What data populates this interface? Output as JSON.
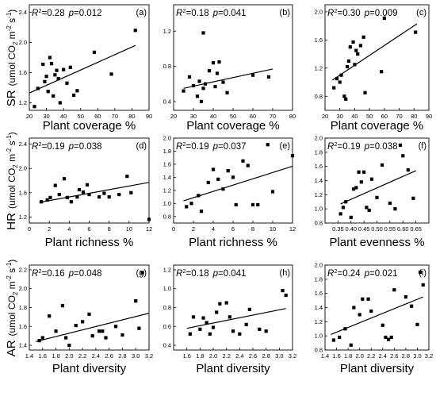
{
  "figure": {
    "row_labels": [
      {
        "resp": "SR",
        "unit": "(umol CO",
        "sub": "2",
        "unit2": " m",
        "sup1": "-2",
        "unit3": " s",
        "sup2": "-1",
        "close": ")"
      },
      {
        "resp": "HR",
        "unit": "(umol CO",
        "sub": "2",
        "unit2": " m",
        "sup1": "-2",
        "unit3": " s",
        "sup2": "-1",
        "close": ")"
      },
      {
        "resp": "AR",
        "unit": "(umol CO",
        "sub": "2",
        "unit2": " m",
        "sup1": "-2",
        "unit3": " s",
        "sup2": "-1",
        "close": ")"
      }
    ]
  },
  "chart_data": [
    {
      "id": "a",
      "type": "scatter",
      "panel_label": "(a)",
      "r2": "0.28",
      "p": "0.012",
      "xlabel": "Plant coverage %",
      "xlim": [
        20,
        90
      ],
      "ylim": [
        1.1,
        2.5
      ],
      "xticks": [
        20,
        30,
        40,
        50,
        60,
        70,
        80,
        90
      ],
      "yticks": [
        1.2,
        1.6,
        2.0,
        2.4
      ],
      "decimals": 1,
      "fit": [
        [
          20,
          1.33
        ],
        [
          82,
          1.96
        ]
      ],
      "points": [
        [
          23,
          1.15
        ],
        [
          25,
          1.39
        ],
        [
          28,
          1.71
        ],
        [
          29,
          1.48
        ],
        [
          30,
          1.55
        ],
        [
          31,
          1.35
        ],
        [
          32,
          1.8
        ],
        [
          33,
          1.72
        ],
        [
          34,
          1.29
        ],
        [
          35,
          1.57
        ],
        [
          36,
          1.63
        ],
        [
          37,
          1.52
        ],
        [
          38,
          1.2
        ],
        [
          40,
          1.64
        ],
        [
          42,
          1.46
        ],
        [
          44,
          1.67
        ],
        [
          46,
          1.3
        ],
        [
          48,
          1.36
        ],
        [
          58,
          1.87
        ],
        [
          68,
          1.58
        ],
        [
          82,
          2.16
        ]
      ]
    },
    {
      "id": "b",
      "type": "scatter",
      "panel_label": "(b)",
      "r2": "0.18",
      "p": "0.041",
      "xlabel": "Plant coverage %",
      "xlim": [
        20,
        80
      ],
      "ylim": [
        0.3,
        1.5
      ],
      "xticks": [
        20,
        30,
        40,
        50,
        60,
        70,
        80
      ],
      "yticks": [
        0.4,
        0.8,
        1.2
      ],
      "decimals": 1,
      "fit": [
        [
          25,
          0.55
        ],
        [
          70,
          0.77
        ]
      ],
      "points": [
        [
          25,
          0.52
        ],
        [
          28,
          0.68
        ],
        [
          30,
          0.58
        ],
        [
          32,
          0.46
        ],
        [
          33,
          0.63
        ],
        [
          34,
          0.4
        ],
        [
          35,
          0.55
        ],
        [
          36,
          0.6
        ],
        [
          38,
          0.75
        ],
        [
          40,
          0.84
        ],
        [
          41,
          0.57
        ],
        [
          42,
          0.72
        ],
        [
          43,
          0.85
        ],
        [
          45,
          0.62
        ],
        [
          47,
          0.5
        ],
        [
          60,
          0.7
        ],
        [
          68,
          0.68
        ],
        [
          35,
          1.18
        ]
      ]
    },
    {
      "id": "c",
      "type": "scatter",
      "panel_label": "(c)",
      "r2": "0.30",
      "p": "0.009",
      "xlabel": "Plant coverage %",
      "xlim": [
        20,
        90
      ],
      "ylim": [
        0.6,
        2.1
      ],
      "xticks": [
        20,
        30,
        40,
        50,
        60,
        70,
        80,
        90
      ],
      "yticks": [
        0.8,
        1.2,
        1.6,
        2.0
      ],
      "decimals": 1,
      "fit": [
        [
          25,
          1.03
        ],
        [
          82,
          1.83
        ]
      ],
      "points": [
        [
          26,
          0.92
        ],
        [
          28,
          1.05
        ],
        [
          30,
          1.0
        ],
        [
          31,
          1.1
        ],
        [
          33,
          0.8
        ],
        [
          34,
          0.76
        ],
        [
          35,
          1.22
        ],
        [
          36,
          1.3
        ],
        [
          37,
          1.5
        ],
        [
          39,
          1.57
        ],
        [
          40,
          1.25
        ],
        [
          41,
          1.45
        ],
        [
          42,
          1.4
        ],
        [
          44,
          1.52
        ],
        [
          46,
          1.64
        ],
        [
          47,
          0.85
        ],
        [
          58,
          1.15
        ],
        [
          60,
          1.91
        ],
        [
          81,
          1.71
        ]
      ]
    },
    {
      "id": "d",
      "type": "scatter",
      "panel_label": "(d)",
      "r2": "0.19",
      "p": "0.038",
      "xlabel": "Plant richness %",
      "xlim": [
        0,
        12
      ],
      "ylim": [
        1.1,
        2.5
      ],
      "xticks": [
        0,
        2,
        4,
        6,
        8,
        10,
        12
      ],
      "yticks": [
        1.2,
        1.6,
        2.0,
        2.4
      ],
      "decimals": 1,
      "fit": [
        [
          1,
          1.44
        ],
        [
          12,
          1.77
        ]
      ],
      "points": [
        [
          1.2,
          1.45
        ],
        [
          1.8,
          1.48
        ],
        [
          2.1,
          1.52
        ],
        [
          2.6,
          1.72
        ],
        [
          3.0,
          1.57
        ],
        [
          3.5,
          1.83
        ],
        [
          3.8,
          1.52
        ],
        [
          4.2,
          1.45
        ],
        [
          4.8,
          1.53
        ],
        [
          5.0,
          1.65
        ],
        [
          5.4,
          1.61
        ],
        [
          5.8,
          1.73
        ],
        [
          6.0,
          1.57
        ],
        [
          7.0,
          1.53
        ],
        [
          7.5,
          1.59
        ],
        [
          8.0,
          1.53
        ],
        [
          9.0,
          1.57
        ],
        [
          9.8,
          1.87
        ],
        [
          10.2,
          1.6
        ],
        [
          12.0,
          1.16
        ]
      ]
    },
    {
      "id": "e",
      "type": "scatter",
      "panel_label": "(e)",
      "r2": "0.19",
      "p": "0.037",
      "xlabel": "Plant richness %",
      "xlim": [
        0,
        12
      ],
      "ylim": [
        0.7,
        2.0
      ],
      "xticks": [
        0,
        2,
        4,
        6,
        8,
        10,
        12
      ],
      "yticks": [
        0.8,
        1.0,
        1.2,
        1.4,
        1.6,
        1.8,
        2.0
      ],
      "decimals": 1,
      "fit": [
        [
          1,
          1.04
        ],
        [
          12,
          1.57
        ]
      ],
      "points": [
        [
          1.3,
          0.95
        ],
        [
          1.8,
          1.0
        ],
        [
          2.5,
          1.12
        ],
        [
          2.8,
          0.88
        ],
        [
          3.5,
          1.32
        ],
        [
          4.0,
          1.52
        ],
        [
          4.5,
          1.37
        ],
        [
          5.0,
          1.22
        ],
        [
          5.5,
          1.5
        ],
        [
          6.0,
          1.4
        ],
        [
          6.3,
          0.98
        ],
        [
          7.0,
          1.65
        ],
        [
          7.5,
          1.58
        ],
        [
          8.0,
          0.98
        ],
        [
          8.5,
          0.98
        ],
        [
          9.5,
          1.9
        ],
        [
          10.0,
          1.18
        ],
        [
          12.0,
          1.73
        ]
      ]
    },
    {
      "id": "f",
      "type": "scatter",
      "panel_label": "(f)",
      "r2": "0.19",
      "p": "0.038",
      "xlabel": "Plant evenness %",
      "xlim": [
        0.3,
        0.7
      ],
      "ylim": [
        0.8,
        2.0
      ],
      "xticks": [
        0.35,
        0.4,
        0.45,
        0.5,
        0.55,
        0.6,
        0.65
      ],
      "yticks": [
        0.8,
        1.0,
        1.2,
        1.4,
        1.6,
        1.8,
        2.0
      ],
      "decimals": 1,
      "xdecimals": 2,
      "fit": [
        [
          0.36,
          1.07
        ],
        [
          0.65,
          1.54
        ]
      ],
      "points": [
        [
          0.36,
          0.93
        ],
        [
          0.37,
          1.02
        ],
        [
          0.38,
          1.1
        ],
        [
          0.4,
          0.88
        ],
        [
          0.41,
          1.28
        ],
        [
          0.42,
          1.3
        ],
        [
          0.43,
          1.52
        ],
        [
          0.44,
          1.38
        ],
        [
          0.45,
          1.52
        ],
        [
          0.46,
          1.02
        ],
        [
          0.47,
          0.98
        ],
        [
          0.48,
          1.42
        ],
        [
          0.5,
          1.16
        ],
        [
          0.52,
          1.62
        ],
        [
          0.55,
          1.08
        ],
        [
          0.57,
          1.0
        ],
        [
          0.59,
          1.9
        ],
        [
          0.6,
          1.75
        ],
        [
          0.62,
          1.55
        ],
        [
          0.64,
          1.15
        ]
      ]
    },
    {
      "id": "g",
      "type": "scatter",
      "panel_label": "(g)",
      "r2": "0.16",
      "p": "0.048",
      "xlabel": "Plant diversity",
      "xlim": [
        1.4,
        3.2
      ],
      "ylim": [
        1.35,
        2.25
      ],
      "xticks": [
        1.4,
        1.6,
        1.8,
        2.0,
        2.2,
        2.4,
        2.6,
        2.8,
        3.0,
        3.2
      ],
      "yticks": [
        1.4,
        1.6,
        1.8,
        2.0,
        2.2
      ],
      "decimals": 1,
      "fit": [
        [
          1.5,
          1.44
        ],
        [
          3.2,
          1.74
        ]
      ],
      "points": [
        [
          1.55,
          1.45
        ],
        [
          1.6,
          1.48
        ],
        [
          1.7,
          1.71
        ],
        [
          1.8,
          1.55
        ],
        [
          1.9,
          1.82
        ],
        [
          1.95,
          1.48
        ],
        [
          2.0,
          1.4
        ],
        [
          2.1,
          1.61
        ],
        [
          2.2,
          1.65
        ],
        [
          2.3,
          1.73
        ],
        [
          2.35,
          1.5
        ],
        [
          2.45,
          1.55
        ],
        [
          2.5,
          1.55
        ],
        [
          2.55,
          1.48
        ],
        [
          2.7,
          1.6
        ],
        [
          2.8,
          1.51
        ],
        [
          3.0,
          1.87
        ],
        [
          3.05,
          1.58
        ],
        [
          3.1,
          2.17
        ]
      ]
    },
    {
      "id": "h",
      "type": "scatter",
      "panel_label": "(h)",
      "r2": "0.18",
      "p": "0.041",
      "xlabel": "Plant diversity",
      "xlim": [
        1.4,
        3.2
      ],
      "ylim": [
        0.35,
        1.25
      ],
      "xticks": [
        1.6,
        1.8,
        2.0,
        2.2,
        2.4,
        2.6,
        2.8,
        3.0,
        3.2
      ],
      "yticks": [
        0.4,
        0.6,
        0.8,
        1.0,
        1.2
      ],
      "decimals": 1,
      "fit": [
        [
          1.6,
          0.58
        ],
        [
          3.1,
          0.79
        ]
      ],
      "points": [
        [
          1.65,
          0.52
        ],
        [
          1.7,
          0.7
        ],
        [
          1.8,
          0.57
        ],
        [
          1.85,
          0.69
        ],
        [
          1.9,
          0.64
        ],
        [
          1.95,
          0.52
        ],
        [
          2.0,
          0.59
        ],
        [
          2.05,
          0.75
        ],
        [
          2.1,
          0.84
        ],
        [
          2.2,
          0.85
        ],
        [
          2.25,
          0.7
        ],
        [
          2.3,
          0.55
        ],
        [
          2.4,
          0.52
        ],
        [
          2.5,
          0.62
        ],
        [
          2.55,
          0.78
        ],
        [
          2.7,
          0.57
        ],
        [
          2.8,
          0.55
        ],
        [
          3.05,
          0.98
        ],
        [
          3.1,
          0.93
        ]
      ]
    },
    {
      "id": "i",
      "type": "scatter",
      "panel_label": "(i)",
      "r2": "0.24",
      "p": "0.021",
      "xlabel": "Plant diversity",
      "xlim": [
        1.4,
        3.2
      ],
      "ylim": [
        0.8,
        2.0
      ],
      "xticks": [
        1.4,
        1.6,
        1.8,
        2.0,
        2.2,
        2.4,
        2.6,
        2.8,
        3.0,
        3.2
      ],
      "yticks": [
        0.8,
        1.0,
        1.2,
        1.4,
        1.6,
        1.8,
        2.0
      ],
      "decimals": 1,
      "fit": [
        [
          1.5,
          1.02
        ],
        [
          3.1,
          1.55
        ]
      ],
      "points": [
        [
          1.55,
          0.94
        ],
        [
          1.65,
          0.98
        ],
        [
          1.75,
          1.1
        ],
        [
          1.85,
          0.87
        ],
        [
          1.9,
          1.4
        ],
        [
          2.0,
          1.3
        ],
        [
          2.05,
          1.52
        ],
        [
          2.15,
          1.52
        ],
        [
          2.2,
          1.35
        ],
        [
          2.4,
          1.15
        ],
        [
          2.45,
          0.98
        ],
        [
          2.5,
          0.95
        ],
        [
          2.55,
          0.98
        ],
        [
          2.6,
          1.65
        ],
        [
          2.8,
          1.55
        ],
        [
          2.9,
          1.42
        ],
        [
          3.0,
          1.16
        ],
        [
          3.05,
          1.9
        ],
        [
          3.1,
          1.72
        ]
      ]
    }
  ]
}
